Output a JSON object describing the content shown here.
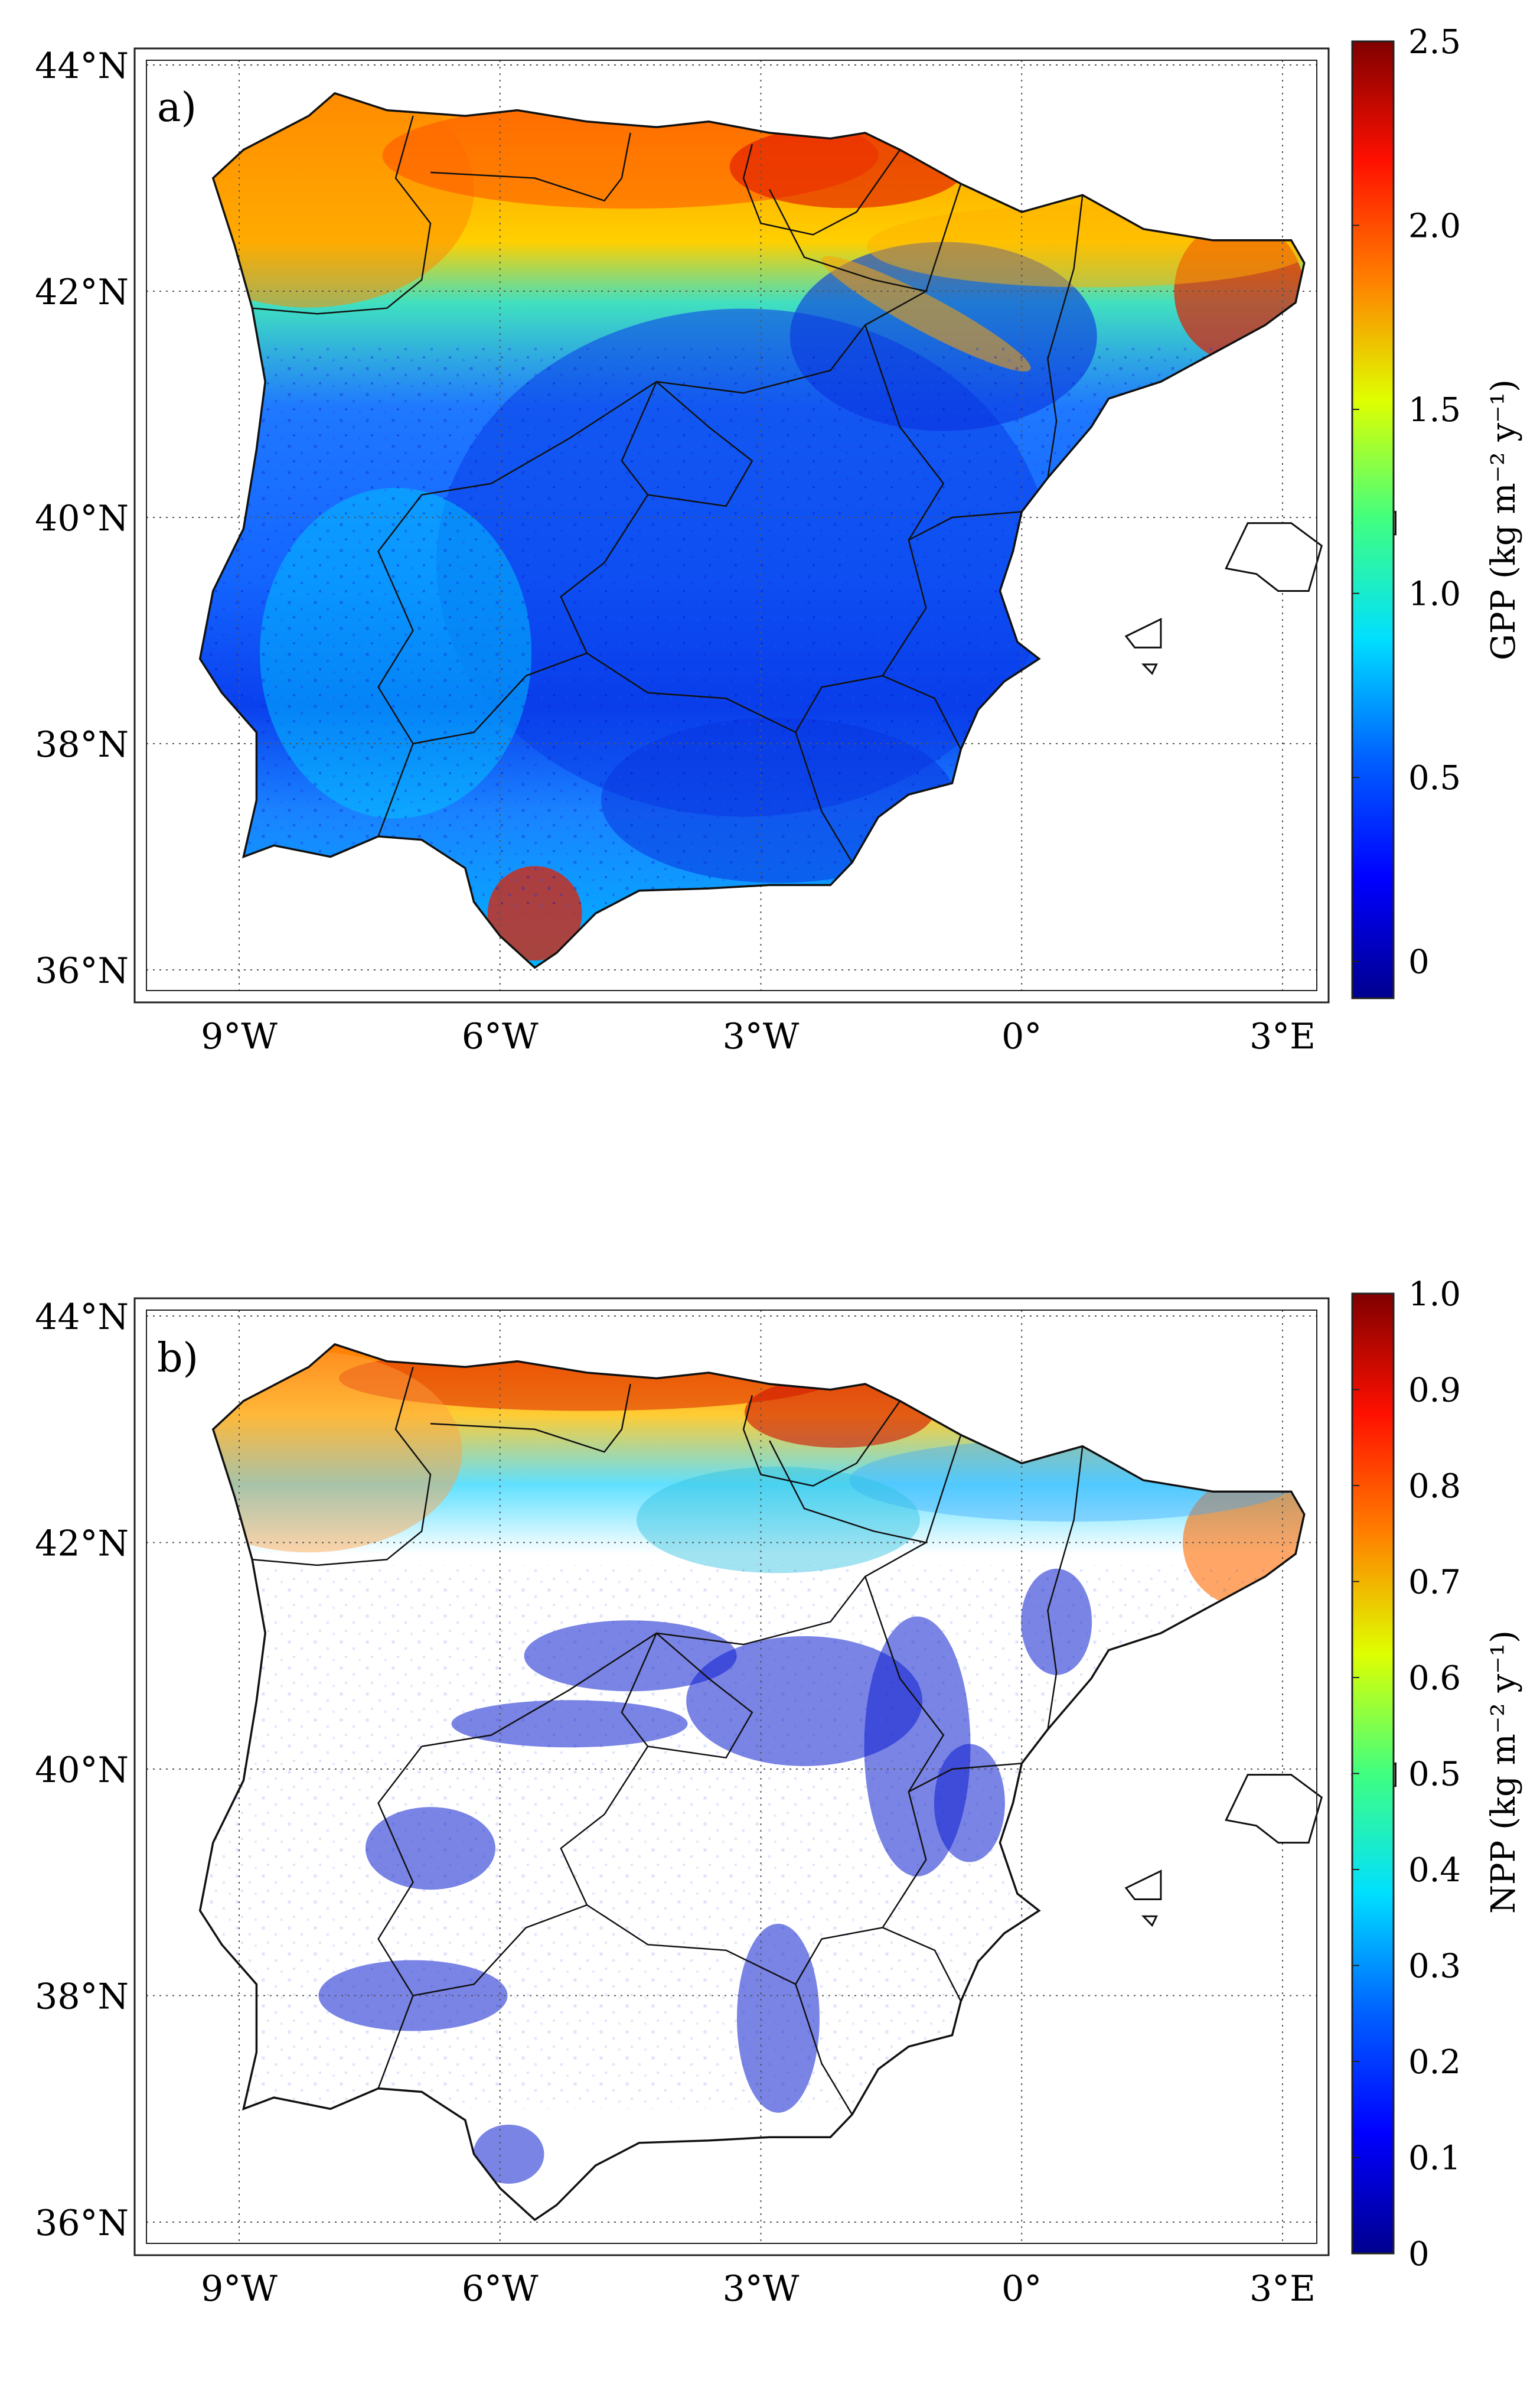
{
  "figure": {
    "panels": [
      {
        "id": "a",
        "label": "a)",
        "variable": "GPP",
        "colorbar_title": "GPP (kg m⁻² y⁻¹)",
        "colorbar_ticks": [
          "2.5",
          "2.0",
          "1.5",
          "1.0",
          "0.5",
          "0"
        ],
        "colorbar_range": [
          -0.1,
          2.5
        ],
        "lat_ticks": [
          "44°N",
          "42°N",
          "40°N",
          "38°N",
          "36°N"
        ],
        "lon_ticks": [
          "9°W",
          "6°W",
          "3°W",
          "0°",
          "3°E"
        ]
      },
      {
        "id": "b",
        "label": "b)",
        "variable": "NPP",
        "colorbar_title": "NPP (kg m⁻² y⁻¹)",
        "colorbar_ticks": [
          "1.0",
          "0.9",
          "0.8",
          "0.7",
          "0.6",
          "0.5",
          "0.4",
          "0.3",
          "0.2",
          "0.1",
          "0"
        ],
        "colorbar_range": [
          0,
          1.0
        ],
        "lat_ticks": [
          "44°N",
          "42°N",
          "40°N",
          "38°N",
          "36°N"
        ],
        "lon_ticks": [
          "9°W",
          "6°W",
          "3°W",
          "0°",
          "3°E"
        ]
      }
    ],
    "colormap": "jet",
    "colors": {
      "coastline": "#111111",
      "gridline": "#555555",
      "frame": "#222222",
      "jet_dark_blue": "#00008f",
      "jet_blue": "#0040ff",
      "jet_cyan": "#00dfff",
      "jet_green": "#40ff80",
      "jet_yellow": "#ffef00",
      "jet_orange": "#ff8000",
      "jet_red": "#e00000",
      "jet_dark_red": "#800000"
    }
  }
}
